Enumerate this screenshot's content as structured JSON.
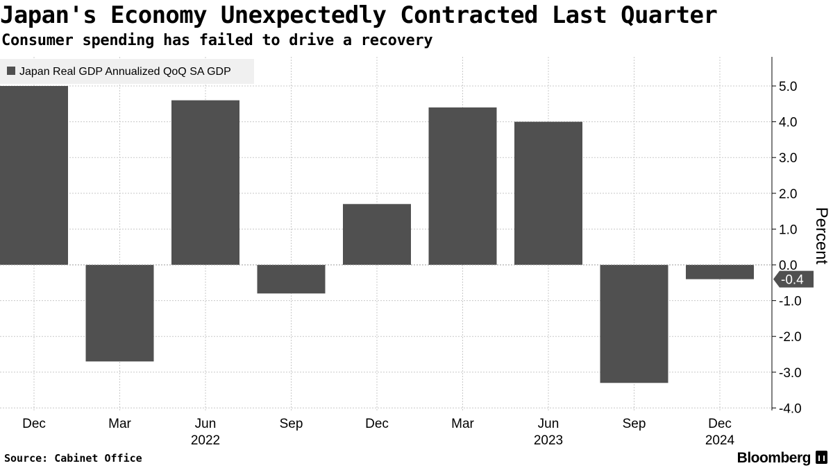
{
  "header": {
    "title": "Japan's Economy Unexpectedly Contracted Last Quarter",
    "subtitle": "Consumer spending has failed to drive a recovery"
  },
  "footer": {
    "source": "Source: Cabinet Office",
    "brand": "Bloomberg"
  },
  "colors": {
    "bar": "#505050",
    "grid": "#c8c8c8",
    "legend_bg": "#f0f0f0",
    "callout": "#505050"
  },
  "chart_data": {
    "type": "bar",
    "title": "Japan's Economy Unexpectedly Contracted Last Quarter",
    "subtitle": "Consumer spending has failed to drive a recovery",
    "legend_position": "top-left",
    "categories": [
      "Dec",
      "Mar",
      "Jun",
      "Sep",
      "Dec",
      "Mar",
      "Jun",
      "Sep",
      "Dec"
    ],
    "year_labels": [
      {
        "category_index": 2,
        "label": "2022"
      },
      {
        "category_index": 6,
        "label": "2023"
      },
      {
        "category_index": 8,
        "label": "2024"
      }
    ],
    "series": [
      {
        "name": "Japan Real GDP Annualized QoQ SA GDP",
        "values": [
          5.0,
          -2.7,
          4.6,
          -0.8,
          1.7,
          4.4,
          4.0,
          -3.3,
          -0.4
        ]
      }
    ],
    "ylabel": "Percent",
    "ylim": [
      -4.2,
      5.8
    ],
    "yticks": [
      5.0,
      4.0,
      3.0,
      2.0,
      1.0,
      0.0,
      -1.0,
      -2.0,
      -3.0,
      -4.0
    ],
    "ytick_labels": [
      "5.0",
      "4.0",
      "3.0",
      "2.0",
      "1.0",
      "0.0",
      "-1.0",
      "-2.0",
      "-3.0",
      "-4.0"
    ],
    "y_axis_side": "right",
    "last_value_callout": "-0.4",
    "grid": true
  }
}
